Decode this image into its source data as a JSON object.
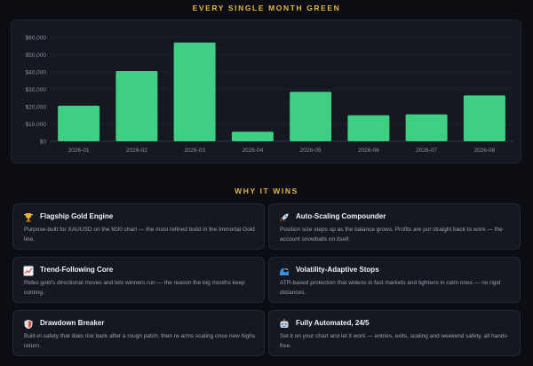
{
  "chart_section": {
    "title": "EVERY SINGLE MONTH GREEN"
  },
  "chart_data": {
    "type": "bar",
    "categories": [
      "2026-01",
      "2026-02",
      "2026-03",
      "2026-04",
      "2026-05",
      "2026-06",
      "2026-07",
      "2026-08"
    ],
    "values": [
      20500,
      40500,
      57000,
      5500,
      28500,
      15000,
      15500,
      26500
    ],
    "ylim": [
      0,
      60000
    ],
    "yticks": [
      0,
      10000,
      20000,
      30000,
      40000,
      50000,
      60000
    ],
    "ytick_labels": [
      "$0",
      "$10,000",
      "$20,000",
      "$30,000",
      "$40,000",
      "$50,000",
      "$60,000"
    ],
    "bar_color": "#3ecf82",
    "grid": true
  },
  "wins_section": {
    "title": "WHY IT WINS",
    "cards": [
      {
        "icon": "trophy-icon",
        "title": "Flagship Gold Engine",
        "desc": "Purpose-built for XAUUSD on the M30 chart — the most refined build in the Immortal Gold line."
      },
      {
        "icon": "rocket-icon",
        "title": "Auto-Scaling Compounder",
        "desc": "Position size steps up as the balance grows. Profits are put straight back to work — the account snowballs on itself."
      },
      {
        "icon": "trend-chart-icon",
        "title": "Trend-Following Core",
        "desc": "Rides gold's directional moves and lets winners run — the reason the big months keep coming."
      },
      {
        "icon": "wave-icon",
        "title": "Volatility-Adaptive Stops",
        "desc": "ATR-based protection that widens in fast markets and tightens in calm ones — no rigid distances."
      },
      {
        "icon": "shield-icon",
        "title": "Drawdown Breaker",
        "desc": "Built-in safety that dials risk back after a rough patch, then re-arms scaling once new highs return."
      },
      {
        "icon": "robot-icon",
        "title": "Fully Automated, 24/5",
        "desc": "Set it on your chart and let it work — entries, exits, scaling and weekend safety, all hands-free."
      }
    ]
  }
}
